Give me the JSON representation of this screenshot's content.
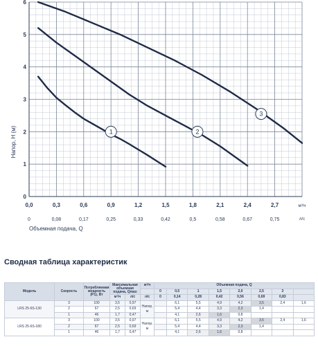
{
  "chart_data": {
    "type": "line",
    "ylabel": "Напор, H (м)",
    "xlabel": "Объемная подача, Q",
    "x_unit": "м³/ч",
    "x2_unit": "л/с",
    "xlim": [
      0,
      3.0
    ],
    "ylim": [
      0,
      6
    ],
    "x_ticks": [
      "0,0",
      "0,3",
      "0,6",
      "0,9",
      "1,2",
      "1,5",
      "1,8",
      "2,1",
      "2,4",
      "2,7"
    ],
    "x2_ticks": [
      "0",
      "0,08",
      "0,17",
      "0,25",
      "0,33",
      "0,42",
      "0,5",
      "0,58",
      "0,67",
      "0,75"
    ],
    "y_ticks": [
      "0",
      "1",
      "2",
      "3",
      "4",
      "5",
      "6"
    ],
    "grid": true,
    "series": [
      {
        "name": "1",
        "x": [
          0.1,
          0.2,
          0.3,
          0.4,
          0.5,
          0.6,
          0.7,
          0.8,
          0.9,
          1.0,
          1.1,
          1.2,
          1.3,
          1.4,
          1.5
        ],
        "y": [
          3.7,
          3.35,
          3.05,
          2.82,
          2.6,
          2.4,
          2.24,
          2.08,
          1.92,
          1.78,
          1.62,
          1.45,
          1.28,
          1.1,
          0.92
        ]
      },
      {
        "name": "2",
        "x": [
          0.1,
          0.3,
          0.5,
          0.7,
          0.9,
          1.1,
          1.3,
          1.5,
          1.7,
          1.9,
          2.1,
          2.3,
          2.4
        ],
        "y": [
          5.2,
          4.75,
          4.35,
          3.95,
          3.55,
          3.15,
          2.8,
          2.5,
          2.2,
          1.9,
          1.55,
          1.15,
          0.95
        ]
      },
      {
        "name": "3",
        "x": [
          0.1,
          0.4,
          0.7,
          1.0,
          1.3,
          1.6,
          1.9,
          2.2,
          2.5,
          2.8,
          3.0
        ],
        "y": [
          6.0,
          5.7,
          5.35,
          5.0,
          4.6,
          4.2,
          3.75,
          3.25,
          2.7,
          2.1,
          1.65
        ]
      }
    ],
    "curve_label_positions": [
      {
        "name": "1",
        "x": 0.9,
        "y": 2.0
      },
      {
        "name": "2",
        "x": 1.85,
        "y": 2.0
      },
      {
        "name": "3",
        "x": 2.55,
        "y": 2.55
      }
    ]
  },
  "summary": {
    "title": "Сводная таблица характеристик",
    "headers": {
      "model": "Модель",
      "speed": "Скорость",
      "power": "Потребляемая мощность (P1), Вт",
      "max_flow": "Максимальная объемная подача, Qmax",
      "max_flow_m3h": "м³/ч",
      "max_flow_ls": "л/с",
      "head": "Напор, м",
      "flow_group": "Объемная подача, Q",
      "unit_m3h": "м³/ч",
      "unit_ls": "л/с",
      "flow_m3h": [
        "0",
        "0,5",
        "1",
        "1,5",
        "2,0",
        "2,5",
        "3"
      ],
      "flow_ls": [
        "0",
        "0,14",
        "0,28",
        "0,42",
        "0,56",
        "0,69",
        "0,83"
      ]
    },
    "models": [
      {
        "name": "LRS 25-6S-130",
        "rows": [
          {
            "speed": "3",
            "power": "100",
            "qmax_m3h": "3,5",
            "qmax_ls": "0,97",
            "head": [
              "6,1",
              "5,5",
              "4,9",
              "4,2",
              "3,5",
              "2,4",
              "1,6"
            ],
            "shade": [
              0,
              0,
              1,
              1,
              2,
              0,
              0
            ]
          },
          {
            "speed": "2",
            "power": "67",
            "qmax_m3h": "2,5",
            "qmax_ls": "0,69",
            "head": [
              "5,4",
              "4,4",
              "3,3",
              "2,3",
              "1,4",
              "",
              ""
            ],
            "shade": [
              0,
              0,
              1,
              2,
              0,
              0,
              0
            ]
          },
          {
            "speed": "1",
            "power": "46",
            "qmax_m3h": "1,7",
            "qmax_ls": "0,47",
            "head": [
              "4,1",
              "2,6",
              "1,6",
              "0,8",
              "",
              "",
              ""
            ],
            "shade": [
              0,
              1,
              2,
              0,
              0,
              0,
              0
            ]
          }
        ]
      },
      {
        "name": "LRS 25-6S-180",
        "rows": [
          {
            "speed": "3",
            "power": "100",
            "qmax_m3h": "3,5",
            "qmax_ls": "0,97",
            "head": [
              "6,1",
              "5,5",
              "4,9",
              "4,2",
              "3,5",
              "2,4",
              "1,6"
            ],
            "shade": [
              0,
              0,
              1,
              1,
              2,
              0,
              0
            ]
          },
          {
            "speed": "2",
            "power": "67",
            "qmax_m3h": "2,5",
            "qmax_ls": "0,69",
            "head": [
              "5,4",
              "4,4",
              "3,3",
              "2,3",
              "1,4",
              "",
              ""
            ],
            "shade": [
              0,
              0,
              1,
              2,
              0,
              0,
              0
            ]
          },
          {
            "speed": "1",
            "power": "46",
            "qmax_m3h": "1,7",
            "qmax_ls": "0,47",
            "head": [
              "4,1",
              "2,6",
              "1,6",
              "0,8",
              "",
              "",
              ""
            ],
            "shade": [
              0,
              1,
              2,
              0,
              0,
              0,
              0
            ]
          }
        ]
      }
    ]
  }
}
